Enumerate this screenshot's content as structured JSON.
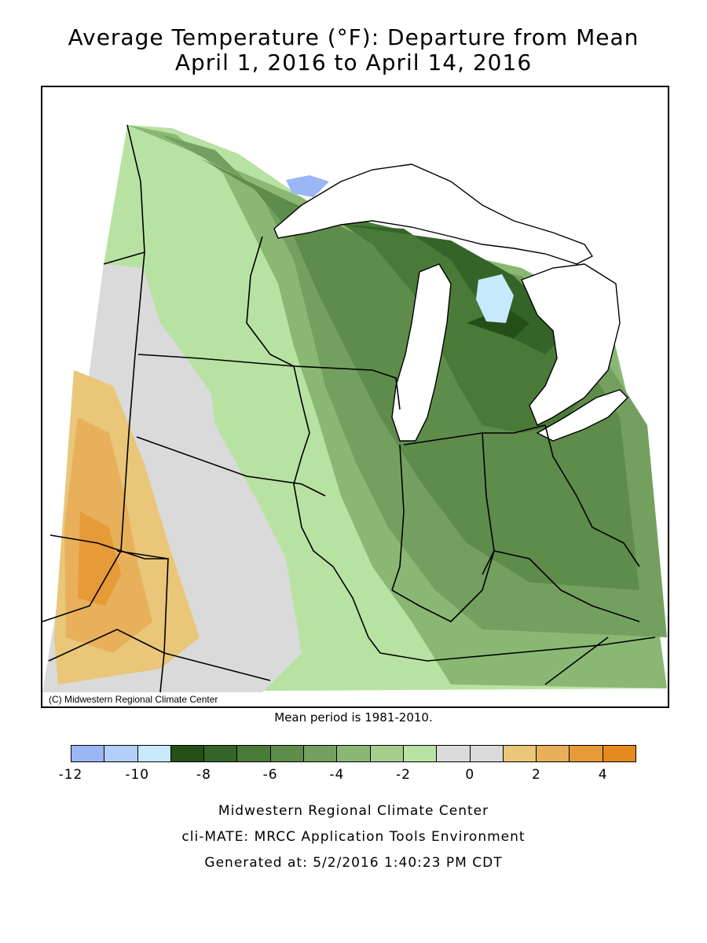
{
  "title": {
    "line1": "Average Temperature (°F): Departure from Mean",
    "line2": "April 1, 2016 to April 14, 2016"
  },
  "map": {
    "copyright": "(C) Midwestern Regional Climate Center",
    "mean_period": "Mean period is 1981-2010."
  },
  "legend": {
    "colors": [
      "#9bb6f5",
      "#b3cff9",
      "#c8e8fb",
      "#245018",
      "#346428",
      "#4a7a38",
      "#5e8c4a",
      "#74a05f",
      "#8ab874",
      "#a5cd8c",
      "#b8e2a2",
      "#dadada",
      "#dadada",
      "#e9c678",
      "#e8b05a",
      "#e69a38",
      "#e68a20"
    ],
    "tick_labels": [
      "-12",
      "-10",
      "-8",
      "-6",
      "-4",
      "-2",
      "0",
      "2",
      "4"
    ]
  },
  "footer": {
    "line1": "Midwestern Regional Climate Center",
    "line2": "cli-MATE: MRCC Application Tools Environment",
    "line3": "Generated at: 5/2/2016 1:40:23 PM CDT"
  }
}
